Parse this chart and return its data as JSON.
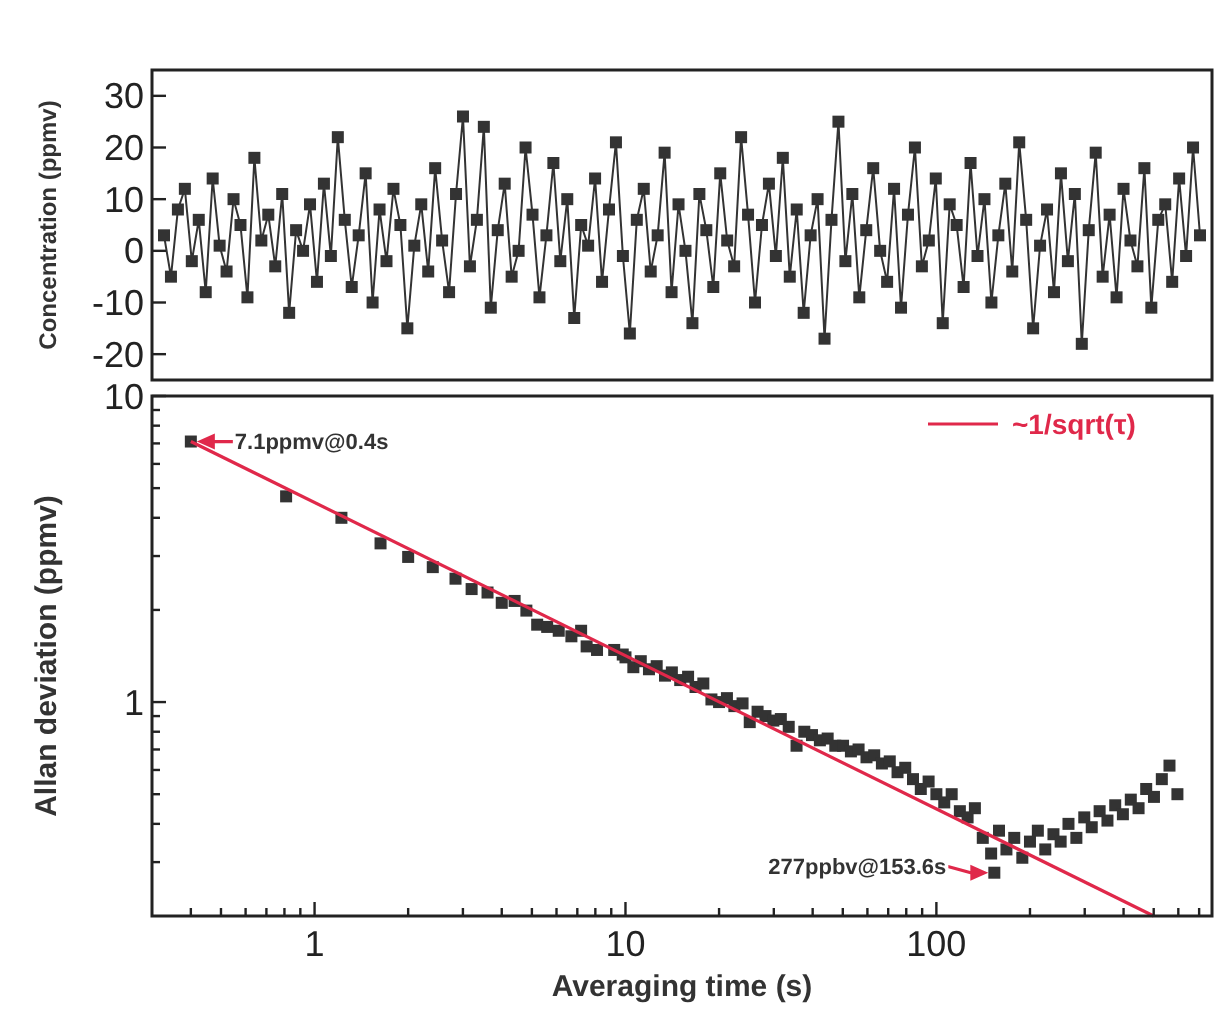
{
  "chart_data": [
    {
      "type": "line",
      "ylabel": "Concentration (ppmv)",
      "categories": [
        null,
        null,
        null,
        null,
        null,
        null,
        null,
        null,
        null,
        null,
        null,
        null,
        null,
        null,
        null,
        null,
        null,
        null,
        null,
        null,
        null,
        null,
        null,
        null,
        null,
        null,
        null,
        null,
        null,
        null,
        null,
        null,
        null,
        null,
        null,
        null,
        null,
        null,
        null,
        null,
        null,
        null,
        null,
        null,
        null,
        null,
        null,
        null,
        null,
        null,
        null,
        null,
        null,
        null,
        null,
        null,
        null,
        null,
        null,
        null,
        null,
        null,
        null,
        null,
        null,
        null,
        null,
        null,
        null,
        null,
        null,
        null,
        null,
        null,
        null,
        null,
        null,
        null,
        null,
        null,
        null,
        null,
        null,
        null,
        null,
        null,
        null,
        null,
        null,
        null,
        null,
        null,
        null,
        null,
        null,
        null,
        null,
        null,
        null,
        null,
        null,
        null,
        null,
        null,
        null,
        null,
        null,
        null,
        null,
        null,
        null,
        null,
        null,
        null,
        null,
        null,
        null,
        null,
        null,
        null,
        null,
        null,
        null,
        null,
        null,
        null,
        null,
        null,
        null,
        null,
        null,
        null,
        null,
        null,
        null,
        null,
        null,
        null,
        null,
        null,
        null,
        null,
        null,
        null,
        null,
        null,
        null,
        null,
        null,
        null
      ],
      "values": [
        3,
        -5,
        8,
        12,
        -2,
        6,
        -8,
        14,
        1,
        -4,
        10,
        5,
        -9,
        18,
        2,
        7,
        -3,
        11,
        -12,
        4,
        0,
        9,
        -6,
        13,
        -1,
        22,
        6,
        -7,
        3,
        15,
        -10,
        8,
        -2,
        12,
        5,
        -15,
        1,
        9,
        -4,
        16,
        2,
        -8,
        11,
        26,
        -3,
        6,
        24,
        -11,
        4,
        13,
        -5,
        0,
        20,
        7,
        -9,
        3,
        17,
        -2,
        10,
        -13,
        5,
        1,
        14,
        -6,
        8,
        21,
        -1,
        -16,
        6,
        12,
        -4,
        3,
        19,
        -8,
        9,
        0,
        -14,
        11,
        4,
        -7,
        15,
        2,
        -3,
        22,
        7,
        -10,
        5,
        13,
        -1,
        18,
        -5,
        8,
        -12,
        3,
        10,
        -17,
        6,
        25,
        -2,
        11,
        -9,
        4,
        16,
        0,
        -6,
        12,
        -11,
        7,
        20,
        -3,
        2,
        14,
        -14,
        9,
        5,
        -7,
        17,
        -1,
        10,
        -10,
        3,
        13,
        -4,
        21,
        6,
        -15,
        1,
        8,
        -8,
        15,
        -2,
        11,
        -18,
        4,
        19,
        -5,
        7,
        -9,
        12,
        2,
        -3,
        16,
        -11,
        6,
        9,
        -6,
        14,
        -1,
        20,
        3
      ],
      "color": "#333333",
      "marker": "square",
      "ylim": [
        -25,
        35
      ],
      "yticks": [
        -20,
        -10,
        0,
        10,
        20,
        30
      ],
      "tick_labels": "y"
    },
    {
      "type": "scatter",
      "xlabel": "Averaging time (s)",
      "ylabel": "Allan deviation (ppmv)",
      "log": "xy",
      "legend": "top right",
      "xlim": [
        0.3,
        770
      ],
      "xticks": [
        {
          "value": 0.4,
          "label": null
        },
        {
          "value": 0.5,
          "label": null
        },
        {
          "value": 0.6,
          "label": null
        },
        {
          "value": 0.7,
          "label": null
        },
        {
          "value": 0.8,
          "label": null
        },
        {
          "value": 0.9,
          "label": null
        },
        1,
        {
          "value": 2,
          "label": null
        },
        {
          "value": 3,
          "label": null
        },
        {
          "value": 4,
          "label": null
        },
        {
          "value": 5,
          "label": null
        },
        {
          "value": 6,
          "label": null
        },
        {
          "value": 7,
          "label": null
        },
        {
          "value": 8,
          "label": null
        },
        {
          "value": 9,
          "label": null
        },
        10,
        {
          "value": 20,
          "label": null
        },
        {
          "value": 30,
          "label": null
        },
        {
          "value": 40,
          "label": null
        },
        {
          "value": 50,
          "label": null
        },
        {
          "value": 60,
          "label": null
        },
        {
          "value": 70,
          "label": null
        },
        {
          "value": 80,
          "label": null
        },
        {
          "value": 90,
          "label": null
        },
        100,
        {
          "value": 200,
          "label": null
        },
        {
          "value": 300,
          "label": null
        },
        {
          "value": 400,
          "label": null
        },
        {
          "value": 500,
          "label": null
        },
        {
          "value": 600,
          "label": null
        },
        {
          "value": 700,
          "label": null
        }
      ],
      "ylim": [
        0.2,
        10
      ],
      "yticks": [
        {
          "value": 0.3,
          "label": null
        },
        {
          "value": 0.4,
          "label": null
        },
        {
          "value": 0.5,
          "label": null
        },
        {
          "value": 0.6,
          "label": null
        },
        {
          "value": 0.7,
          "label": null
        },
        {
          "value": 0.8,
          "label": null
        },
        {
          "value": 0.9,
          "label": null
        },
        1,
        {
          "value": 2,
          "label": null
        },
        {
          "value": 3,
          "label": null
        },
        {
          "value": 4,
          "label": null
        },
        {
          "value": 5,
          "label": null
        },
        {
          "value": 6,
          "label": null
        },
        {
          "value": 7,
          "label": null
        },
        {
          "value": 8,
          "label": null
        },
        {
          "value": 9,
          "label": null
        },
        10
      ],
      "series": [
        {
          "marker": "square",
          "color": "#333333",
          "x": [
            0.4,
            0.81,
            1.22,
            1.63,
            2.0,
            2.4,
            2.84,
            3.2,
            3.6,
            4.0,
            4.4,
            4.8,
            5.2,
            5.6,
            6.1,
            6.7,
            7.2,
            7.5,
            8.1,
            9.2,
            9.8,
            10,
            10.6,
            11.2,
            11.9,
            12.6,
            13.4,
            14.1,
            15,
            15.9,
            16.8,
            17.8,
            18.9,
            20,
            21.2,
            22.4,
            23.8,
            25.1,
            26.6,
            28.2,
            29.9,
            31.6,
            33.5,
            35.5,
            37.6,
            39.8,
            42.2,
            44.7,
            47.3,
            50.1,
            53.1,
            56.2,
            59.6,
            63.1,
            66.8,
            70.8,
            75,
            79.4,
            84.1,
            89.1,
            94.4,
            100,
            106,
            112,
            119,
            126,
            133,
            141,
            150,
            153.6,
            159,
            168,
            178,
            189,
            200,
            212,
            224,
            238,
            251,
            266,
            282,
            299,
            316,
            335,
            355,
            376,
            398,
            422,
            447,
            473,
            501,
            531,
            562,
            596
          ],
          "values": [
            7.1,
            4.7,
            4.0,
            3.3,
            2.98,
            2.76,
            2.53,
            2.34,
            2.28,
            2.11,
            2.14,
            1.99,
            1.79,
            1.76,
            1.71,
            1.64,
            1.71,
            1.52,
            1.48,
            1.48,
            1.43,
            1.4,
            1.3,
            1.36,
            1.28,
            1.31,
            1.22,
            1.25,
            1.18,
            1.21,
            1.12,
            1.15,
            1.02,
            1.0,
            1.03,
            0.97,
            0.99,
            0.86,
            0.93,
            0.9,
            0.87,
            0.88,
            0.83,
            0.72,
            0.8,
            0.78,
            0.75,
            0.76,
            0.72,
            0.72,
            0.69,
            0.7,
            0.66,
            0.67,
            0.63,
            0.64,
            0.59,
            0.61,
            0.56,
            0.52,
            0.55,
            0.5,
            0.47,
            0.5,
            0.44,
            0.42,
            0.45,
            0.36,
            0.32,
            0.277,
            0.38,
            0.33,
            0.36,
            0.31,
            0.35,
            0.38,
            0.33,
            0.37,
            0.35,
            0.4,
            0.36,
            0.42,
            0.39,
            0.44,
            0.41,
            0.46,
            0.43,
            0.48,
            0.45,
            0.52,
            0.49,
            0.56,
            0.62,
            0.5
          ]
        },
        {
          "type": "line",
          "marker": "none",
          "name": "~1/sqrt(τ)",
          "color": "#e0284a",
          "x": [
            0.4,
            500
          ],
          "values": [
            7.1,
            0.2
          ]
        }
      ],
      "annotations": [
        {
          "text": "7.1ppmv@0.4s",
          "x": 0.4,
          "y": 7.1
        },
        {
          "text": "277ppbv@153.6s",
          "x": 153.6,
          "y": 0.277
        }
      ]
    }
  ]
}
